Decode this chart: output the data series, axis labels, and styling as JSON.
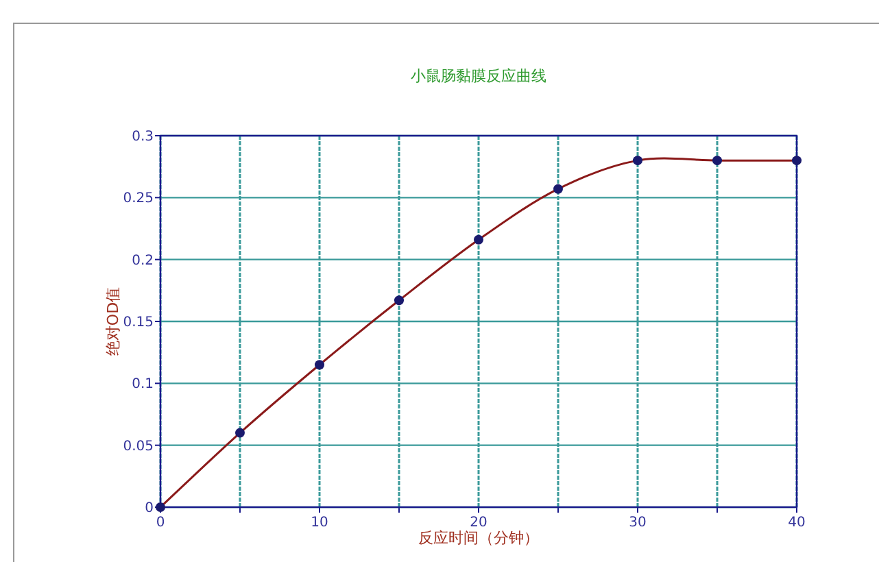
{
  "chart_data": {
    "type": "line",
    "title": "小鼠肠黏膜反应曲线",
    "xlabel": "反应时间（分钟）",
    "ylabel": "绝对OD值",
    "x": [
      0,
      5,
      10,
      15,
      20,
      25,
      30,
      35,
      40
    ],
    "series": [
      {
        "color": "#8b1a1a",
        "values": [
          0,
          0.06,
          0.115,
          0.167,
          0.216,
          0.257,
          0.28,
          0.28,
          0.28
        ]
      }
    ],
    "xlim": [
      0,
      40
    ],
    "xticks": [
      0,
      {
        "value": 5,
        "label": null
      },
      10,
      {
        "value": 15,
        "label": null
      },
      20,
      {
        "value": 25,
        "label": null
      },
      30,
      {
        "value": 35,
        "label": null
      },
      40
    ],
    "ylim": [
      0,
      0.3
    ],
    "yticks": [
      0,
      0.05,
      0.1,
      0.15,
      0.2,
      0.25,
      0.3
    ],
    "grid": true,
    "marker": "circle",
    "line_style": "solid"
  }
}
